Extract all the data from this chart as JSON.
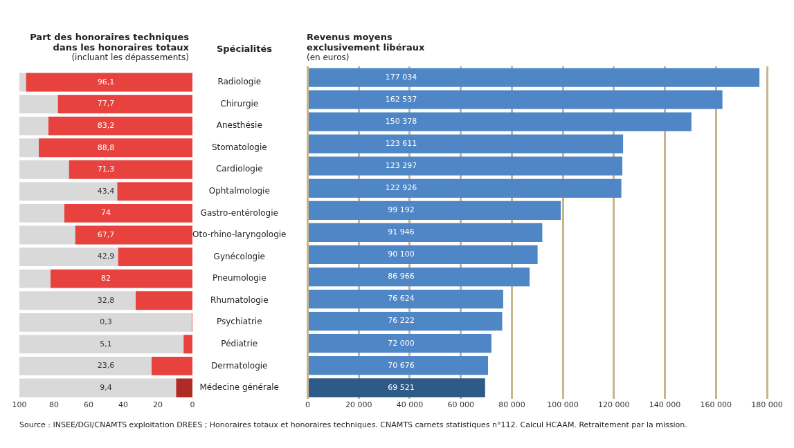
{
  "chart_data": [
    {
      "type": "bar",
      "orientation": "horizontal",
      "title": "Part des honoraires techniques\ndans les honoraires totaux",
      "subtitle": "(incluant les dépassements)",
      "ylabel": "Spécialités",
      "categories": [
        "Radiologie",
        "Chirurgie",
        "Anesthésie",
        "Stomatologie",
        "Cardiologie",
        "Ophtalmologie",
        "Gastro-entérologie",
        "Oto-rhino-laryngologie",
        "Gynécologie",
        "Pneumologie",
        "Rhumatologie",
        "Psychiatrie",
        "Pédiatrie",
        "Dermatologie",
        "Médecine générale"
      ],
      "values": [
        96.1,
        77.7,
        83.2,
        88.8,
        71.3,
        43.4,
        74,
        67.7,
        42.9,
        82,
        32.8,
        0.3,
        5.1,
        23.6,
        9.4
      ],
      "value_labels": [
        "96,1",
        "77,7",
        "83,2",
        "88,8",
        "71,3",
        "43,4",
        "74",
        "67,7",
        "42,9",
        "82",
        "32,8",
        "0,3",
        "5,1",
        "23,6",
        "9,4"
      ],
      "colors": [
        "#e8423f",
        "#e8423f",
        "#e8423f",
        "#e8423f",
        "#e8423f",
        "#e8423f",
        "#e8423f",
        "#e8423f",
        "#e8423f",
        "#e8423f",
        "#e8423f",
        "#e8423f",
        "#e8423f",
        "#e8423f",
        "#b02a26"
      ],
      "xlim": [
        100,
        0
      ],
      "xticks": [
        100,
        80,
        60,
        40,
        20,
        0
      ],
      "grid": false,
      "legend": false,
      "annotations": [
        "Source : INSEE/DGI/CNAMTS exploitation DREES ; Honoraires totaux et honoraires techniques. CNAMTS carnets statistiques n°112. Calcul HCAAM. Retraitement par la mission."
      ]
    },
    {
      "type": "bar",
      "orientation": "horizontal",
      "title": "Revenus moyens\nexclusivement libéraux",
      "subtitle": "(en euros)",
      "categories": [
        null,
        null,
        null,
        null,
        null,
        null,
        null,
        null,
        null,
        null,
        null,
        null,
        null,
        null,
        null
      ],
      "values": [
        177034,
        162537,
        150378,
        123611,
        123297,
        122926,
        99192,
        91946,
        90100,
        86966,
        76624,
        76222,
        72000,
        70676,
        69521
      ],
      "value_labels": [
        "177 034",
        "162 537",
        "150 378",
        "123 611",
        "123 297",
        "122 926",
        "99 192",
        "91 946",
        "90 100",
        "86 966",
        "76 624",
        "76 222",
        "72 000",
        "70 676",
        "69 521"
      ],
      "colors": [
        "#4f86c6",
        "#4f86c6",
        "#4f86c6",
        "#4f86c6",
        "#4f86c6",
        "#4f86c6",
        "#4f86c6",
        "#4f86c6",
        "#4f86c6",
        "#4f86c6",
        "#4f86c6",
        "#4f86c6",
        "#4f86c6",
        "#4f86c6",
        "#2e5a88"
      ],
      "xlim": [
        0,
        180000
      ],
      "xticks": [
        0,
        {
          "value": 20000,
          "label": "20 000"
        },
        {
          "value": 40000,
          "label": "40 000"
        },
        {
          "value": 60000,
          "label": "60 000"
        },
        {
          "value": 80000,
          "label": "80 000"
        },
        {
          "value": 100000,
          "label": "100 000"
        },
        {
          "value": 120000,
          "label": "120 000"
        },
        {
          "value": 140000,
          "label": "140 000"
        },
        {
          "value": 160000,
          "label": "160 000"
        },
        {
          "value": 180000,
          "label": "180 000"
        }
      ],
      "grid": "x",
      "legend": false,
      "tick_labels": "x"
    }
  ]
}
